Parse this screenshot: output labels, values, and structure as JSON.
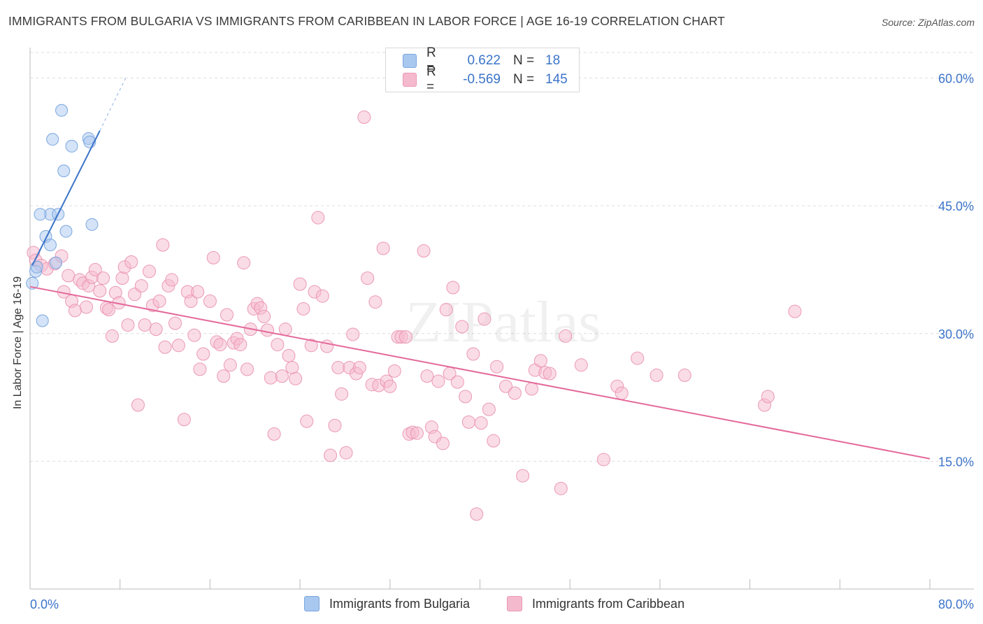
{
  "title": "IMMIGRANTS FROM BULGARIA VS IMMIGRANTS FROM CARIBBEAN IN LABOR FORCE | AGE 16-19 CORRELATION CHART",
  "source": "Source: ZipAtlas.com",
  "watermark": "ZIPatlas",
  "legend": {
    "rows": [
      {
        "r_label": "R =",
        "r_value": "0.622",
        "n_label": "N =",
        "n_value": "18"
      },
      {
        "r_label": "R =",
        "r_value": "-0.569",
        "n_label": "N =",
        "n_value": "145"
      }
    ]
  },
  "colors": {
    "bulgaria_fill": "#a9c8ef",
    "bulgaria_stroke": "#7aa6e0",
    "bulgaria_line": "#3b74c9",
    "caribbean_fill": "#f5b9cd",
    "caribbean_stroke": "#eb98b5",
    "caribbean_line": "#e4699a",
    "tick_label": "#3b74c9",
    "grid": "#dddddd"
  },
  "chart_data": {
    "type": "scatter",
    "title": "IMMIGRANTS FROM BULGARIA VS IMMIGRANTS FROM CARIBBEAN IN LABOR FORCE | AGE 16-19 CORRELATION CHART",
    "xlabel": "",
    "ylabel": "In Labor Force | Age 16-19",
    "xlim": [
      0,
      80
    ],
    "ylim": [
      0,
      63
    ],
    "x_tick_labels": [
      "0.0%",
      "80.0%"
    ],
    "y_ticks": [
      15,
      30,
      45,
      60
    ],
    "y_tick_labels": [
      "15.0%",
      "30.0%",
      "45.0%",
      "60.0%"
    ],
    "grid": true,
    "series": [
      {
        "name": "Immigrants from Bulgaria",
        "R": 0.622,
        "N": 18,
        "trend": {
          "x0": 0.2,
          "y0": 38.0,
          "x1": 6.2,
          "y1": 53.8,
          "dash_to_x": 8.5,
          "dash_to_y": 60.0
        },
        "points": [
          [
            2.8,
            56.2
          ],
          [
            2.0,
            52.8
          ],
          [
            3.7,
            52.0
          ],
          [
            5.2,
            52.9
          ],
          [
            5.3,
            52.5
          ],
          [
            3.0,
            49.1
          ],
          [
            1.8,
            44.0
          ],
          [
            0.9,
            44.0
          ],
          [
            2.5,
            44.0
          ],
          [
            5.5,
            42.8
          ],
          [
            3.2,
            42.0
          ],
          [
            1.4,
            41.4
          ],
          [
            1.8,
            40.4
          ],
          [
            2.3,
            38.3
          ],
          [
            0.5,
            37.3
          ],
          [
            0.2,
            35.9
          ],
          [
            1.1,
            31.5
          ],
          [
            0.6,
            37.8
          ]
        ]
      },
      {
        "name": "Immigrants from Caribbean",
        "R": -0.569,
        "N": 145,
        "trend": {
          "x0": 0,
          "y0": 35.5,
          "x1": 80,
          "y1": 15.3
        },
        "points": [
          [
            0.3,
            39.5
          ],
          [
            0.5,
            38.6
          ],
          [
            1.0,
            38.0
          ],
          [
            1.5,
            37.6
          ],
          [
            2.2,
            38.2
          ],
          [
            2.8,
            39.1
          ],
          [
            3.4,
            36.8
          ],
          [
            3.0,
            34.9
          ],
          [
            3.7,
            33.8
          ],
          [
            4.0,
            32.7
          ],
          [
            4.4,
            36.3
          ],
          [
            4.7,
            35.9
          ],
          [
            5.0,
            33.1
          ],
          [
            5.2,
            35.6
          ],
          [
            5.5,
            36.6
          ],
          [
            5.8,
            37.5
          ],
          [
            6.2,
            35.0
          ],
          [
            6.5,
            36.5
          ],
          [
            6.8,
            33.0
          ],
          [
            7.0,
            32.8
          ],
          [
            7.3,
            29.7
          ],
          [
            7.6,
            34.8
          ],
          [
            7.9,
            33.6
          ],
          [
            8.2,
            36.5
          ],
          [
            8.4,
            37.8
          ],
          [
            8.7,
            31.0
          ],
          [
            9.0,
            38.4
          ],
          [
            9.3,
            34.6
          ],
          [
            9.6,
            21.6
          ],
          [
            9.9,
            35.6
          ],
          [
            10.2,
            31.0
          ],
          [
            10.6,
            37.3
          ],
          [
            10.9,
            33.3
          ],
          [
            11.2,
            30.5
          ],
          [
            11.5,
            33.8
          ],
          [
            11.8,
            40.4
          ],
          [
            12.0,
            28.4
          ],
          [
            12.3,
            35.6
          ],
          [
            12.6,
            36.3
          ],
          [
            12.9,
            31.2
          ],
          [
            13.2,
            28.6
          ],
          [
            13.7,
            19.9
          ],
          [
            14.0,
            34.9
          ],
          [
            14.3,
            33.8
          ],
          [
            14.6,
            29.8
          ],
          [
            14.9,
            34.9
          ],
          [
            15.1,
            25.8
          ],
          [
            15.4,
            27.6
          ],
          [
            16.0,
            33.8
          ],
          [
            16.3,
            38.9
          ],
          [
            16.6,
            29.0
          ],
          [
            16.9,
            28.7
          ],
          [
            17.2,
            25.0
          ],
          [
            17.5,
            32.2
          ],
          [
            17.8,
            26.3
          ],
          [
            18.1,
            28.9
          ],
          [
            18.4,
            29.4
          ],
          [
            18.7,
            28.7
          ],
          [
            19.0,
            38.3
          ],
          [
            19.3,
            25.8
          ],
          [
            19.6,
            30.5
          ],
          [
            19.9,
            32.9
          ],
          [
            20.2,
            33.5
          ],
          [
            20.5,
            33.0
          ],
          [
            20.8,
            32.0
          ],
          [
            21.1,
            30.4
          ],
          [
            21.4,
            24.8
          ],
          [
            21.7,
            18.2
          ],
          [
            22.0,
            28.7
          ],
          [
            22.4,
            25.0
          ],
          [
            22.7,
            30.5
          ],
          [
            23.0,
            27.4
          ],
          [
            23.3,
            26.0
          ],
          [
            23.6,
            24.7
          ],
          [
            24.0,
            35.8
          ],
          [
            24.3,
            32.9
          ],
          [
            24.6,
            19.7
          ],
          [
            25.0,
            28.6
          ],
          [
            25.3,
            34.9
          ],
          [
            25.6,
            43.6
          ],
          [
            26.0,
            34.4
          ],
          [
            26.4,
            28.5
          ],
          [
            26.7,
            15.7
          ],
          [
            27.1,
            19.2
          ],
          [
            27.4,
            26.0
          ],
          [
            27.7,
            22.9
          ],
          [
            28.1,
            16.0
          ],
          [
            28.4,
            26.0
          ],
          [
            28.7,
            29.9
          ],
          [
            29.0,
            25.3
          ],
          [
            29.3,
            26.0
          ],
          [
            29.7,
            55.4
          ],
          [
            30.0,
            36.5
          ],
          [
            30.4,
            24.0
          ],
          [
            30.7,
            33.7
          ],
          [
            31.0,
            23.9
          ],
          [
            31.4,
            40.0
          ],
          [
            31.7,
            24.4
          ],
          [
            32.0,
            23.8
          ],
          [
            32.4,
            25.6
          ],
          [
            32.7,
            29.6
          ],
          [
            33.0,
            29.6
          ],
          [
            33.4,
            29.6
          ],
          [
            33.7,
            18.2
          ],
          [
            34.0,
            18.4
          ],
          [
            34.4,
            18.3
          ],
          [
            35.0,
            39.7
          ],
          [
            35.3,
            25.0
          ],
          [
            35.7,
            19.0
          ],
          [
            36.0,
            17.9
          ],
          [
            36.3,
            24.4
          ],
          [
            36.7,
            17.1
          ],
          [
            37.0,
            32.8
          ],
          [
            37.3,
            25.3
          ],
          [
            37.6,
            35.4
          ],
          [
            38.0,
            24.3
          ],
          [
            38.4,
            30.8
          ],
          [
            38.7,
            22.6
          ],
          [
            39.0,
            19.6
          ],
          [
            39.4,
            27.6
          ],
          [
            39.7,
            8.8
          ],
          [
            40.1,
            19.5
          ],
          [
            40.4,
            31.7
          ],
          [
            40.8,
            21.1
          ],
          [
            41.2,
            17.4
          ],
          [
            41.5,
            26.1
          ],
          [
            42.3,
            23.8
          ],
          [
            43.1,
            23.0
          ],
          [
            43.8,
            13.3
          ],
          [
            44.6,
            23.5
          ],
          [
            44.9,
            25.7
          ],
          [
            45.4,
            26.8
          ],
          [
            45.8,
            25.4
          ],
          [
            46.2,
            25.3
          ],
          [
            47.2,
            11.8
          ],
          [
            47.6,
            29.7
          ],
          [
            49.0,
            26.3
          ],
          [
            51.0,
            15.2
          ],
          [
            52.2,
            23.8
          ],
          [
            52.6,
            23.0
          ],
          [
            54.0,
            27.1
          ],
          [
            55.7,
            25.1
          ],
          [
            58.2,
            25.1
          ],
          [
            65.3,
            21.6
          ],
          [
            65.6,
            22.6
          ],
          [
            68.0,
            32.6
          ]
        ]
      }
    ]
  },
  "axis": {
    "x_min_label": "0.0%",
    "x_max_label": "80.0%",
    "y_label": "In Labor Force | Age 16-19",
    "y_tick_labels": [
      "15.0%",
      "30.0%",
      "45.0%",
      "60.0%"
    ]
  },
  "bottom_legend": {
    "bulgaria": "Immigrants from Bulgaria",
    "caribbean": "Immigrants from Caribbean"
  }
}
